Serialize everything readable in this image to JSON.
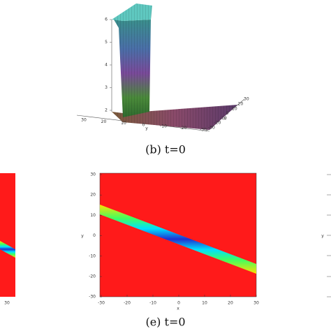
{
  "panel_b": {
    "caption": "(b) t=0",
    "z_ticks": [
      2,
      3,
      4,
      5,
      6
    ],
    "y_ticks": [
      30,
      20,
      10,
      0,
      -10,
      -20,
      -30
    ],
    "x_ticks": [
      -30,
      -20,
      -10,
      0,
      10,
      20,
      30
    ],
    "y_label": "y",
    "x_label": "x"
  },
  "panel_d": {
    "x_tick": 30
  },
  "panel_e": {
    "caption": "(e) t=0",
    "y_ticks": [
      30,
      20,
      10,
      0,
      -10,
      -20,
      -30
    ],
    "x_ticks": [
      -30,
      -20,
      -10,
      0,
      10,
      20,
      30
    ],
    "y_label": "y",
    "x_label": "x"
  },
  "panel_f": {
    "y_label": "y"
  }
}
